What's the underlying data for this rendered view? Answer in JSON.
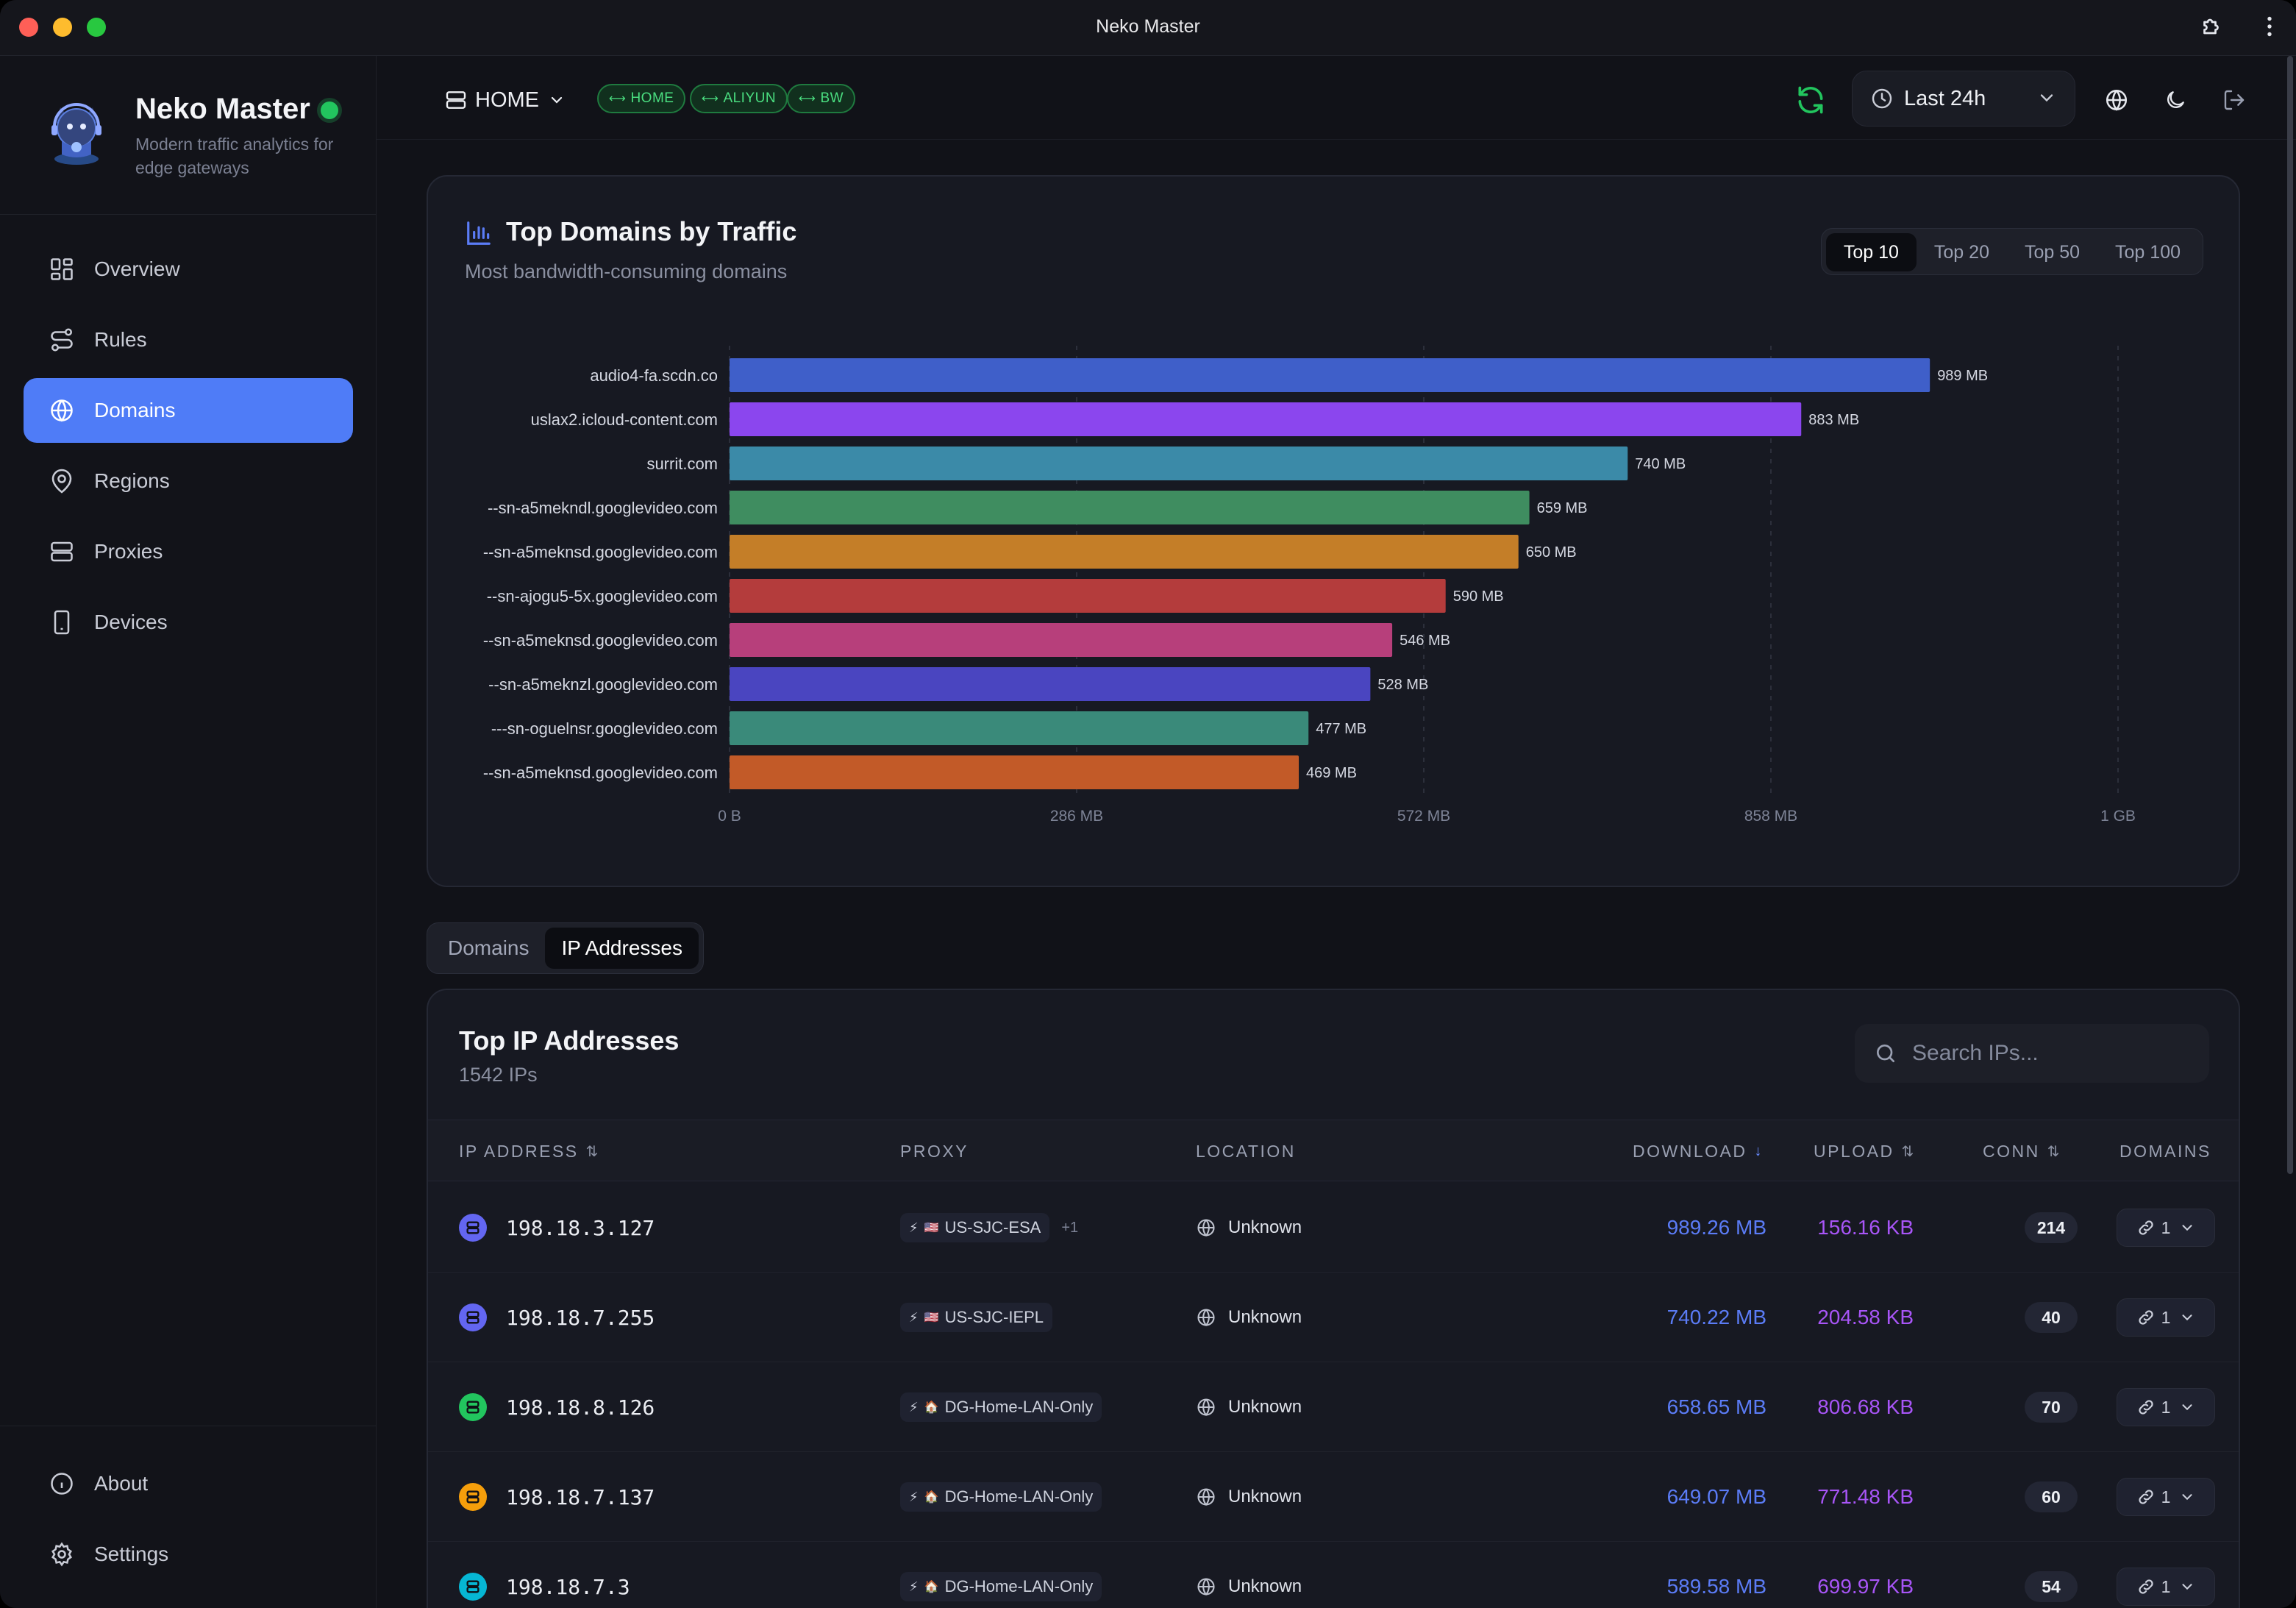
{
  "window": {
    "title": "Neko Master"
  },
  "brand": {
    "name": "Neko Master",
    "subtitle": "Modern traffic analytics for edge gateways"
  },
  "sidebar": {
    "items": [
      {
        "label": "Overview",
        "icon": "grid-icon",
        "active": false
      },
      {
        "label": "Rules",
        "icon": "route-icon",
        "active": false
      },
      {
        "label": "Domains",
        "icon": "globe-icon",
        "active": true
      },
      {
        "label": "Regions",
        "icon": "map-pin-icon",
        "active": false
      },
      {
        "label": "Proxies",
        "icon": "server-icon",
        "active": false
      },
      {
        "label": "Devices",
        "icon": "smartphone-icon",
        "active": false
      }
    ],
    "bottom": [
      {
        "label": "About",
        "icon": "info-icon"
      },
      {
        "label": "Settings",
        "icon": "gear-icon"
      }
    ]
  },
  "topbar": {
    "gateway": "HOME",
    "backends": [
      "HOME",
      "ALIYUN",
      "BW"
    ],
    "time_range": "Last 24h",
    "colors": {
      "backend_chip": "#4ade80",
      "accent": "#4f7cf7"
    }
  },
  "chart": {
    "title": "Top Domains by Traffic",
    "subtitle": "Most bandwidth-consuming domains",
    "limits": [
      "Top 10",
      "Top 20",
      "Top 50",
      "Top 100"
    ],
    "active_limit": "Top 10"
  },
  "chart_data": {
    "type": "bar",
    "orientation": "horizontal",
    "categories": [
      "audio4-fa.scdn.co",
      "uslax2.icloud-content.com",
      "surrit.com",
      "--sn-a5mekndl.googlevideo.com",
      "--sn-a5meknsd.googlevideo.com",
      "--sn-ajogu5-5x.googlevideo.com",
      "--sn-a5meknsd.googlevideo.com",
      "--sn-a5meknzl.googlevideo.com",
      "---sn-oguelnsr.googlevideo.com",
      "--sn-a5meknsd.googlevideo.com"
    ],
    "values": [
      989,
      883,
      740,
      659,
      650,
      590,
      546,
      528,
      477,
      469
    ],
    "value_labels": [
      "989 MB",
      "883 MB",
      "740 MB",
      "659 MB",
      "650 MB",
      "590 MB",
      "546 MB",
      "528 MB",
      "477 MB",
      "469 MB"
    ],
    "unit": "MB",
    "x_ticks": [
      0,
      286,
      572,
      858,
      1144
    ],
    "x_tick_labels": [
      "0 B",
      "286 MB",
      "572 MB",
      "858 MB",
      "1 GB"
    ],
    "xlim": [
      0,
      1144
    ],
    "grid": true,
    "colors": [
      "#3f5fc9",
      "#8b46ee",
      "#3b8aa8",
      "#3f8d60",
      "#c47e28",
      "#b43c3c",
      "#b73f7b",
      "#4a45c0",
      "#3a8a7a",
      "#c25a28"
    ]
  },
  "tabs": {
    "items": [
      "Domains",
      "IP Addresses"
    ],
    "active": "IP Addresses"
  },
  "ip_table": {
    "title": "Top IP Addresses",
    "count": "1542 IPs",
    "search_placeholder": "Search IPs...",
    "headers": {
      "ip": "IP ADDRESS",
      "proxy": "PROXY",
      "location": "LOCATION",
      "download": "DOWNLOAD",
      "upload": "UPLOAD",
      "conn": "CONN",
      "domains": "DOMAINS"
    },
    "rows": [
      {
        "ip": "198.18.3.127",
        "proxy": "US-SJC-ESA",
        "flag": "🇺🇸",
        "extra": "+1",
        "location": "Unknown",
        "download": "989.26 MB",
        "upload": "156.16 KB",
        "conn": "214",
        "domains": "1",
        "color": "#6366f1"
      },
      {
        "ip": "198.18.7.255",
        "proxy": "US-SJC-IEPL",
        "flag": "🇺🇸",
        "extra": "",
        "location": "Unknown",
        "download": "740.22 MB",
        "upload": "204.58 KB",
        "conn": "40",
        "domains": "1",
        "color": "#6366f1"
      },
      {
        "ip": "198.18.8.126",
        "proxy": "DG-Home-LAN-Only",
        "flag": "🏠",
        "extra": "",
        "location": "Unknown",
        "download": "658.65 MB",
        "upload": "806.68 KB",
        "conn": "70",
        "domains": "1",
        "color": "#22c55e"
      },
      {
        "ip": "198.18.7.137",
        "proxy": "DG-Home-LAN-Only",
        "flag": "🏠",
        "extra": "",
        "location": "Unknown",
        "download": "649.07 MB",
        "upload": "771.48 KB",
        "conn": "60",
        "domains": "1",
        "color": "#f59e0b"
      },
      {
        "ip": "198.18.7.3",
        "proxy": "DG-Home-LAN-Only",
        "flag": "🏠",
        "extra": "",
        "location": "Unknown",
        "download": "589.58 MB",
        "upload": "699.97 KB",
        "conn": "54",
        "domains": "1",
        "color": "#06b6d4"
      }
    ]
  }
}
